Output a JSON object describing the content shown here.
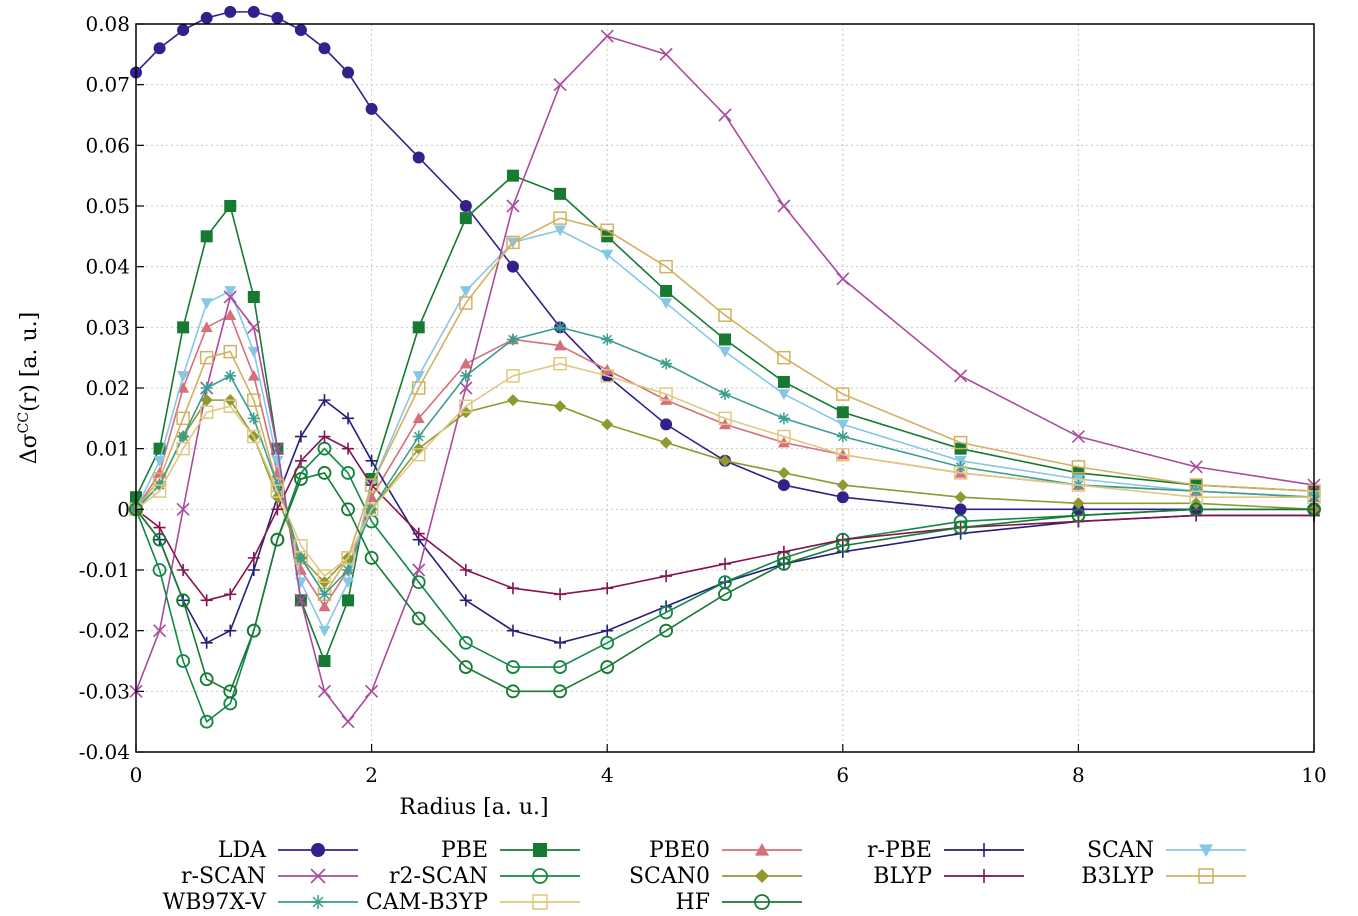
{
  "chart_data": {
    "type": "line",
    "title": "",
    "xlabel": "Radius [a. u.]",
    "ylabel": "ΔσCC(r) [a. u.]",
    "ylabel_main": "Δσ",
    "ylabel_sup": "CC",
    "ylabel_rest": "(r) [a. u.]",
    "xlim": [
      0,
      10
    ],
    "ylim": [
      -0.04,
      0.08
    ],
    "grid": true,
    "x_ticks": [
      "0",
      "2",
      "4",
      "6",
      "8",
      "10"
    ],
    "y_ticks": [
      "-0.04",
      "-0.03",
      "-0.02",
      "-0.01",
      "0",
      "0.01",
      "0.02",
      "0.03",
      "0.04",
      "0.05",
      "0.06",
      "0.07",
      "0.08"
    ],
    "legend": [
      "LDA",
      "PBE",
      "PBE0",
      "r-PBE",
      "SCAN",
      "r-SCAN",
      "r2-SCAN",
      "SCAN0",
      "BLYP",
      "B3LYP",
      "WB97X-V",
      "CAM-B3YP",
      "HF"
    ],
    "legend_items": [
      {
        "label": "LDA",
        "color": "#34208a",
        "marker": "circle-filled"
      },
      {
        "label": "PBE",
        "color": "#167a33",
        "marker": "square-filled"
      },
      {
        "label": "PBE0",
        "color": "#d4707a",
        "marker": "triangle-filled"
      },
      {
        "label": "r-PBE",
        "color": "#24207a",
        "marker": "plus"
      },
      {
        "label": "SCAN",
        "color": "#87c7e6",
        "marker": "triangle-down"
      },
      {
        "label": "r-SCAN",
        "color": "#ab4a9e",
        "marker": "cross"
      },
      {
        "label": "r2-SCAN",
        "color": "#118844",
        "marker": "circle-open"
      },
      {
        "label": "SCAN0",
        "color": "#8f9930",
        "marker": "diamond"
      },
      {
        "label": "BLYP",
        "color": "#851450",
        "marker": "plus"
      },
      {
        "label": "B3LYP",
        "color": "#d4b060",
        "marker": "square-open"
      },
      {
        "label": "WB97X-V",
        "color": "#3a9e90",
        "marker": "star"
      },
      {
        "label": "CAM-B3YP",
        "color": "#e0c880",
        "marker": "square-open"
      },
      {
        "label": "HF",
        "color": "#167a33",
        "marker": "circle-open"
      }
    ],
    "x": [
      0,
      0.2,
      0.4,
      0.6,
      0.8,
      1.0,
      1.2,
      1.4,
      1.6,
      1.8,
      2.0,
      2.4,
      2.8,
      3.2,
      3.6,
      4.0,
      4.5,
      5.0,
      5.5,
      6.0,
      7.0,
      8.0,
      9.0,
      10.0
    ],
    "series": [
      {
        "name": "LDA",
        "values": [
          0.072,
          0.076,
          0.079,
          0.081,
          0.082,
          0.082,
          0.081,
          0.079,
          0.076,
          0.072,
          0.066,
          0.058,
          0.05,
          0.04,
          0.03,
          0.022,
          0.014,
          0.008,
          0.004,
          0.002,
          0.0,
          0.0,
          0.0,
          0.0
        ]
      },
      {
        "name": "PBE",
        "values": [
          0.002,
          0.01,
          0.03,
          0.045,
          0.05,
          0.035,
          0.01,
          -0.015,
          -0.025,
          -0.015,
          0.005,
          0.03,
          0.048,
          0.055,
          0.052,
          0.045,
          0.036,
          0.028,
          0.021,
          0.016,
          0.01,
          0.006,
          0.004,
          0.003
        ]
      },
      {
        "name": "PBE0",
        "values": [
          0.0,
          0.006,
          0.02,
          0.03,
          0.032,
          0.022,
          0.006,
          -0.01,
          -0.016,
          -0.01,
          0.002,
          0.015,
          0.024,
          0.028,
          0.027,
          0.023,
          0.018,
          0.014,
          0.011,
          0.009,
          0.006,
          0.004,
          0.003,
          0.002
        ]
      },
      {
        "name": "r-PBE",
        "values": [
          0.0,
          -0.005,
          -0.015,
          -0.022,
          -0.02,
          -0.01,
          0.002,
          0.012,
          0.018,
          0.015,
          0.008,
          -0.005,
          -0.015,
          -0.02,
          -0.022,
          -0.02,
          -0.016,
          -0.012,
          -0.009,
          -0.007,
          -0.004,
          -0.002,
          -0.001,
          -0.001
        ]
      },
      {
        "name": "SCAN",
        "values": [
          0.0,
          0.008,
          0.022,
          0.034,
          0.036,
          0.026,
          0.008,
          -0.012,
          -0.02,
          -0.012,
          0.004,
          0.022,
          0.036,
          0.044,
          0.046,
          0.042,
          0.034,
          0.026,
          0.019,
          0.014,
          0.008,
          0.005,
          0.003,
          0.002
        ]
      },
      {
        "name": "r-SCAN",
        "values": [
          -0.03,
          -0.02,
          0.0,
          0.02,
          0.035,
          0.03,
          0.01,
          -0.015,
          -0.03,
          -0.035,
          -0.03,
          -0.01,
          0.02,
          0.05,
          0.07,
          0.078,
          0.075,
          0.065,
          0.05,
          0.038,
          0.022,
          0.012,
          0.007,
          0.004
        ]
      },
      {
        "name": "r2-SCAN",
        "values": [
          0.0,
          -0.01,
          -0.025,
          -0.035,
          -0.032,
          -0.02,
          -0.005,
          0.006,
          0.01,
          0.006,
          -0.002,
          -0.012,
          -0.022,
          -0.026,
          -0.026,
          -0.022,
          -0.017,
          -0.012,
          -0.008,
          -0.005,
          -0.002,
          -0.001,
          0.0,
          0.0
        ]
      },
      {
        "name": "SCAN0",
        "values": [
          0.0,
          0.004,
          0.012,
          0.018,
          0.018,
          0.012,
          0.002,
          -0.008,
          -0.012,
          -0.008,
          0.0,
          0.01,
          0.016,
          0.018,
          0.017,
          0.014,
          0.011,
          0.008,
          0.006,
          0.004,
          0.002,
          0.001,
          0.001,
          0.0
        ]
      },
      {
        "name": "BLYP",
        "values": [
          0.0,
          -0.003,
          -0.01,
          -0.015,
          -0.014,
          -0.008,
          0.0,
          0.008,
          0.012,
          0.01,
          0.004,
          -0.004,
          -0.01,
          -0.013,
          -0.014,
          -0.013,
          -0.011,
          -0.009,
          -0.007,
          -0.005,
          -0.003,
          -0.002,
          -0.001,
          -0.001
        ]
      },
      {
        "name": "B3LYP",
        "values": [
          0.0,
          0.005,
          0.015,
          0.025,
          0.026,
          0.018,
          0.004,
          -0.008,
          -0.014,
          -0.008,
          0.004,
          0.02,
          0.034,
          0.044,
          0.048,
          0.046,
          0.04,
          0.032,
          0.025,
          0.019,
          0.011,
          0.007,
          0.004,
          0.003
        ]
      },
      {
        "name": "WB97X-V",
        "values": [
          0.0,
          0.004,
          0.012,
          0.02,
          0.022,
          0.015,
          0.004,
          -0.008,
          -0.014,
          -0.01,
          0.0,
          0.012,
          0.022,
          0.028,
          0.03,
          0.028,
          0.024,
          0.019,
          0.015,
          0.012,
          0.007,
          0.004,
          0.003,
          0.002
        ]
      },
      {
        "name": "CAM-B3YP",
        "values": [
          0.0,
          0.003,
          0.01,
          0.016,
          0.017,
          0.012,
          0.003,
          -0.006,
          -0.011,
          -0.008,
          0.0,
          0.009,
          0.017,
          0.022,
          0.024,
          0.022,
          0.019,
          0.015,
          0.012,
          0.009,
          0.006,
          0.004,
          0.002,
          0.002
        ]
      },
      {
        "name": "HF",
        "values": [
          0.0,
          -0.005,
          -0.015,
          -0.028,
          -0.03,
          -0.02,
          -0.005,
          0.005,
          0.006,
          0.0,
          -0.008,
          -0.018,
          -0.026,
          -0.03,
          -0.03,
          -0.026,
          -0.02,
          -0.014,
          -0.009,
          -0.006,
          -0.003,
          -0.001,
          0.0,
          0.0
        ]
      }
    ]
  }
}
